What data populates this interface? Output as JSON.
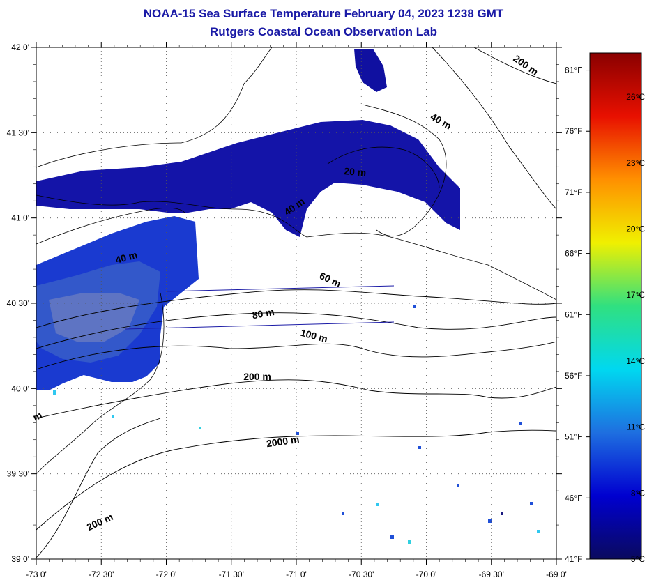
{
  "title": "NOAA-15 Sea Surface Temperature February 04, 2023 1238 GMT",
  "subtitle": "Rutgers Coastal Ocean Observation Lab",
  "map": {
    "lon_range": [
      -73,
      -69
    ],
    "lat_range": [
      39,
      42
    ],
    "lon_ticks": [
      {
        "value": -73,
        "label": "-73 0'"
      },
      {
        "value": -72.5,
        "label": "-72 30'"
      },
      {
        "value": -72,
        "label": "-72 0'"
      },
      {
        "value": -71.5,
        "label": "-71 30'"
      },
      {
        "value": -71,
        "label": "-71 0'"
      },
      {
        "value": -70.5,
        "label": "-70 30'"
      },
      {
        "value": -70,
        "label": "-70 0'"
      },
      {
        "value": -69.5,
        "label": "-69 30'"
      },
      {
        "value": -69,
        "label": "-69 0'"
      }
    ],
    "lat_ticks": [
      {
        "value": 42,
        "label": "42 0'"
      },
      {
        "value": 41.5,
        "label": "41 30'"
      },
      {
        "value": 41,
        "label": "41 0'"
      },
      {
        "value": 40.5,
        "label": "40 30'"
      },
      {
        "value": 40,
        "label": "40 0'"
      },
      {
        "value": 39.5,
        "label": "39 30'"
      },
      {
        "value": 39,
        "label": "39 0'"
      }
    ],
    "grid": "dotted",
    "contour_labels": [
      {
        "text": "200 m",
        "lon": -69.25,
        "lat": 41.88,
        "angle": 35
      },
      {
        "text": "40 m",
        "lon": -69.9,
        "lat": 41.55,
        "angle": 30
      },
      {
        "text": "20 m",
        "lon": -70.55,
        "lat": 41.25,
        "angle": 5
      },
      {
        "text": "40 m",
        "lon": -71.0,
        "lat": 41.05,
        "angle": -35
      },
      {
        "text": "40 m",
        "lon": -72.3,
        "lat": 40.75,
        "angle": -15
      },
      {
        "text": "60 m",
        "lon": -70.75,
        "lat": 40.62,
        "angle": 25
      },
      {
        "text": "80 m",
        "lon": -71.25,
        "lat": 40.42,
        "angle": -10
      },
      {
        "text": "100 m",
        "lon": -70.87,
        "lat": 40.29,
        "angle": 15
      },
      {
        "text": "200 m",
        "lon": -71.3,
        "lat": 40.05,
        "angle": 0
      },
      {
        "text": "2000 m",
        "lon": -71.1,
        "lat": 39.67,
        "angle": -8
      },
      {
        "text": "200 m",
        "lon": -72.5,
        "lat": 39.2,
        "angle": -25
      },
      {
        "text": "m",
        "lon": -72.98,
        "lat": 39.82,
        "angle": -25
      }
    ]
  },
  "colorbar": {
    "celsius": [
      {
        "value": 26,
        "label": "26°C"
      },
      {
        "value": 23,
        "label": "23°C"
      },
      {
        "value": 20,
        "label": "20°C"
      },
      {
        "value": 17,
        "label": "17°C"
      },
      {
        "value": 14,
        "label": "14°C"
      },
      {
        "value": 11,
        "label": "11°C"
      },
      {
        "value": 8,
        "label": "8°C"
      },
      {
        "value": 5,
        "label": "5°C"
      }
    ],
    "fahrenheit": [
      {
        "value": 81,
        "label": "81°F"
      },
      {
        "value": 76,
        "label": "76°F"
      },
      {
        "value": 71,
        "label": "71°F"
      },
      {
        "value": 66,
        "label": "66°F"
      },
      {
        "value": 61,
        "label": "61°F"
      },
      {
        "value": 56,
        "label": "56°F"
      },
      {
        "value": 51,
        "label": "51°F"
      },
      {
        "value": 46,
        "label": "46°F"
      },
      {
        "value": 41,
        "label": "41°F"
      }
    ],
    "c_range": [
      5,
      28
    ],
    "colors": [
      "#0a0a5e",
      "#0000d0",
      "#1e6fe0",
      "#00d8f0",
      "#30e080",
      "#f0f000",
      "#ff9000",
      "#e81000",
      "#8a0000"
    ]
  }
}
